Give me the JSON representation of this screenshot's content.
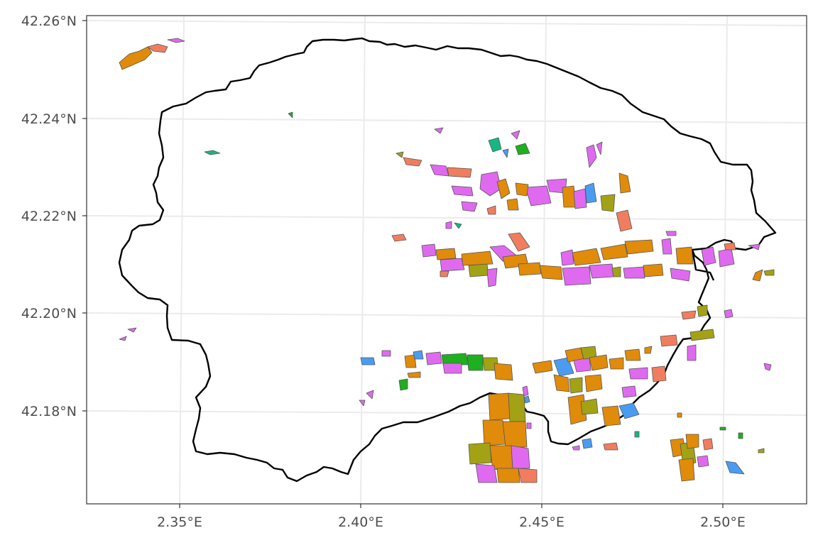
{
  "axes": {
    "x_ticks": [
      "2.35°E",
      "2.40°E",
      "2.45°E",
      "2.50°E"
    ],
    "y_ticks": [
      "42.26°N",
      "42.24°N",
      "42.22°N",
      "42.20°N",
      "42.18°N"
    ]
  },
  "colors": {
    "orange": "#E08B0A",
    "salmon": "#F07E5E",
    "magenta": "#DF6AF0",
    "blue": "#4A9CF0",
    "olive": "#A2A214",
    "green": "#1FAF1F",
    "teal": "#14B885"
  },
  "legend": {
    "shown": false
  }
}
